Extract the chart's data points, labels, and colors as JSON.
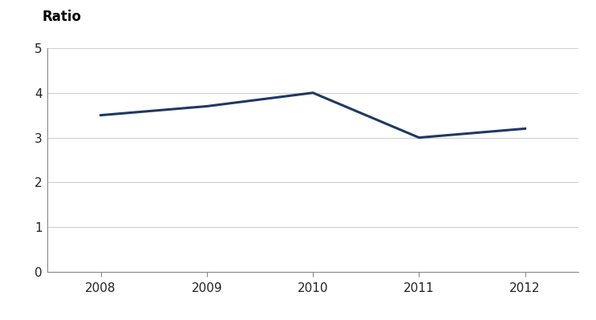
{
  "x": [
    2008,
    2009,
    2010,
    2011,
    2012
  ],
  "y": [
    3.5,
    3.7,
    4.0,
    3.0,
    3.2
  ],
  "ylabel": "Ratio",
  "ylim": [
    0,
    5
  ],
  "yticks": [
    0,
    1,
    2,
    3,
    4,
    5
  ],
  "xlim": [
    2007.5,
    2012.5
  ],
  "xticks": [
    2008,
    2009,
    2010,
    2011,
    2012
  ],
  "line_color": "#1f3864",
  "line_width": 2.2,
  "background_color": "#ffffff",
  "grid_color": "#d0d0d0",
  "label_fontsize": 12,
  "tick_fontsize": 11,
  "tick_color": "#222222"
}
